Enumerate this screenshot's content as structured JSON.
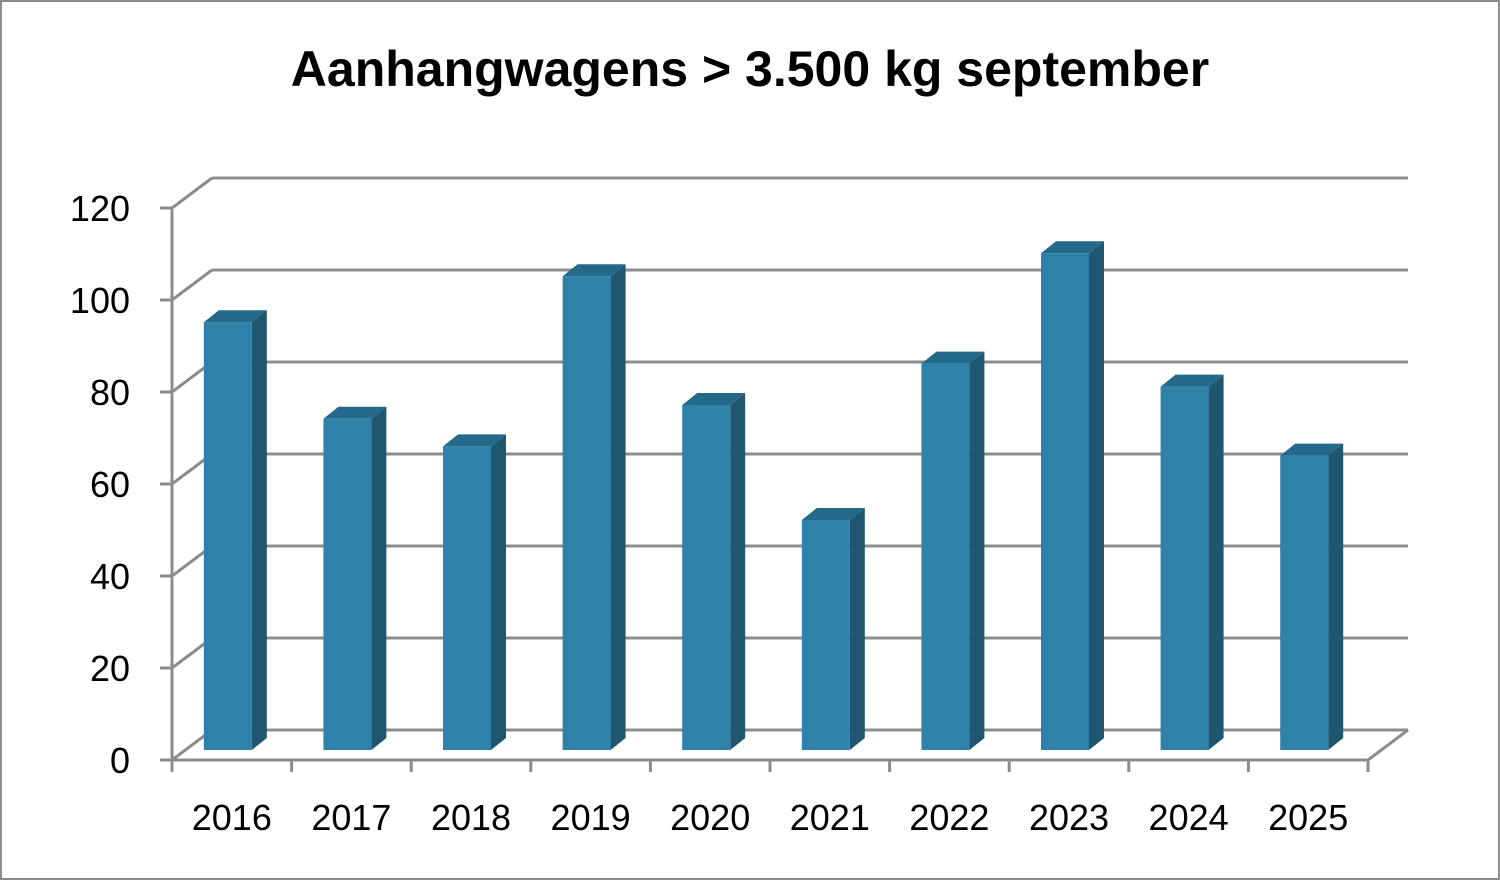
{
  "chart_data": {
    "type": "bar",
    "title": "Aanhangwagens > 3.500 kg september",
    "categories": [
      "2016",
      "2017",
      "2018",
      "2019",
      "2020",
      "2021",
      "2022",
      "2023",
      "2024",
      "2025"
    ],
    "values": [
      93,
      72,
      66,
      103,
      75,
      50,
      84,
      108,
      79,
      64
    ],
    "ylim": [
      0,
      120
    ],
    "yticks": [
      0,
      20,
      40,
      60,
      80,
      100,
      120
    ],
    "grid": true,
    "three_d": true,
    "xlabel": "",
    "ylabel": "",
    "colors": {
      "bar_front": "#2e81a8",
      "bar_side": "#1f5670",
      "bar_top": "#25698a",
      "grid": "#8c8c8c"
    }
  }
}
